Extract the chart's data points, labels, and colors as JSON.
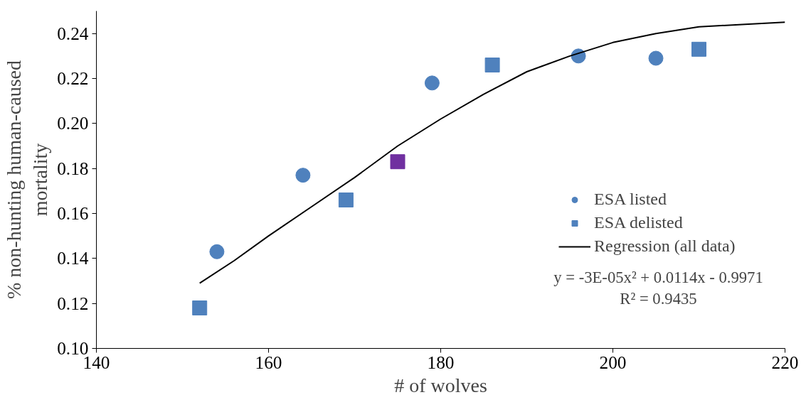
{
  "chart_data": {
    "type": "scatter",
    "xlabel": "# of wolves",
    "ylabel": "% non-hunting human-caused\nmortality",
    "xlim": [
      140,
      220
    ],
    "xticks": [
      140,
      160,
      180,
      200,
      220
    ],
    "ylim": [
      0.1,
      0.25
    ],
    "yticks": [
      {
        "value": 0.1,
        "label": "0.10"
      },
      {
        "value": 0.12,
        "label": "0.12"
      },
      {
        "value": 0.14,
        "label": "0.14"
      },
      {
        "value": 0.16,
        "label": "0.16"
      },
      {
        "value": 0.18,
        "label": "0.18"
      },
      {
        "value": 0.2,
        "label": "0.20"
      },
      {
        "value": 0.22,
        "label": "0.22"
      },
      {
        "value": 0.24,
        "label": "0.24"
      }
    ],
    "grid": false,
    "legend": "right",
    "series": [
      {
        "name": "ESA listed",
        "marker": "circle",
        "color": "#4f81bd",
        "x": [
          154,
          164,
          179,
          196,
          205
        ],
        "values": [
          0.143,
          0.177,
          0.218,
          0.23,
          0.229
        ]
      },
      {
        "name": "ESA delisted",
        "marker": "square",
        "color": "#4f81bd",
        "x": [
          152,
          169,
          186,
          210
        ],
        "values": [
          0.118,
          0.166,
          0.226,
          0.233
        ]
      },
      {
        "marker": "square",
        "color": "#7030a0",
        "x": [
          175
        ],
        "values": [
          0.183
        ]
      },
      {
        "name": "Regression (all data)",
        "type": "line",
        "marker": "none",
        "line_style": "solid",
        "color": "#000000",
        "x": [
          152,
          156,
          160,
          165,
          170,
          175,
          180,
          185,
          190,
          195,
          200,
          205,
          210,
          215,
          220
        ],
        "values": [
          0.129,
          0.139,
          0.15,
          0.163,
          0.176,
          0.19,
          0.202,
          0.213,
          0.223,
          0.23,
          0.236,
          0.24,
          0.243,
          0.244,
          0.245
        ]
      }
    ],
    "annotations": [
      "y = -3E-05x² + 0.0114x - 0.9971",
      "R² = 0.9435"
    ]
  }
}
